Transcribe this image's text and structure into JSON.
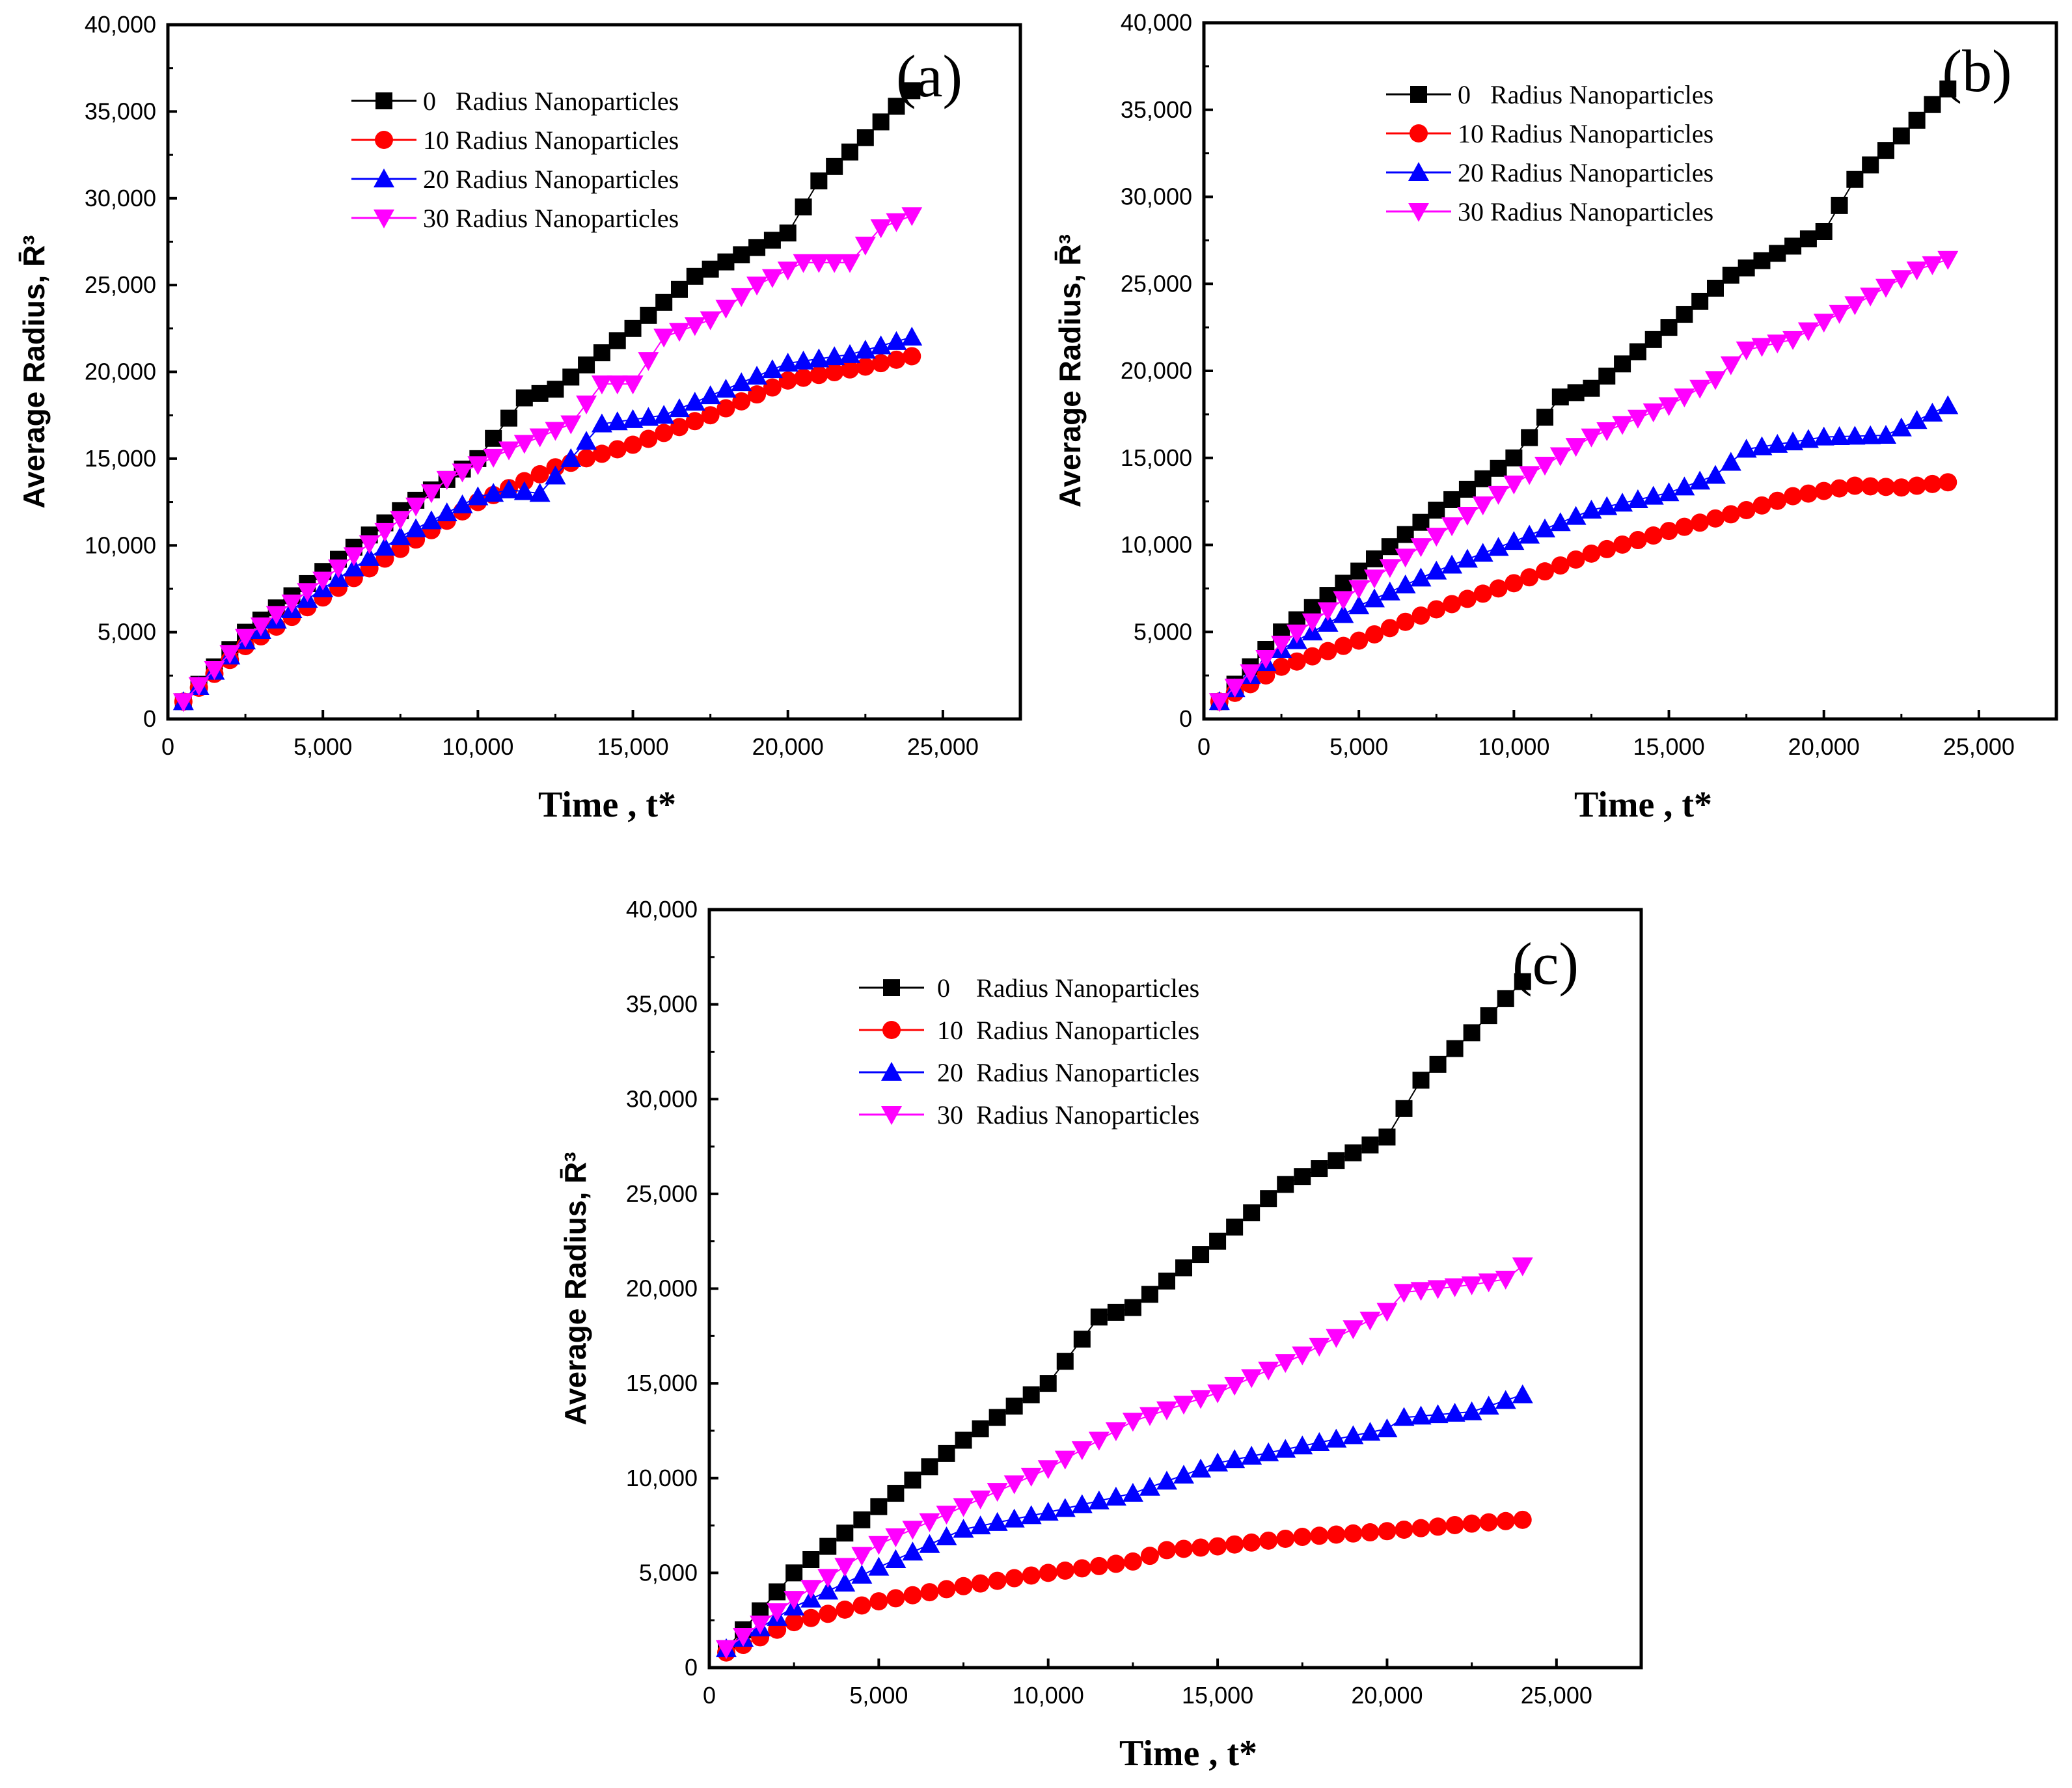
{
  "chart_data": [
    {
      "type": "line",
      "panel_label": "(a)",
      "xlabel": "Time , t*",
      "ylabel": "Average Radius, R̄³",
      "xlim": [
        0,
        27500
      ],
      "ylim": [
        0,
        40000
      ],
      "xticks": [
        "0",
        "5,000",
        "10,000",
        "15,000",
        "20,000",
        "25,000"
      ],
      "yticks": [
        "0",
        "5,000",
        "10,000",
        "15,000",
        "20,000",
        "25,000",
        "30,000",
        "35,000",
        "40,000"
      ],
      "legend_position": "top-center",
      "series": [
        {
          "name": "0   Radius Nanoparticles",
          "color": "#000000",
          "marker": "square",
          "x": [
            500,
            2500,
            5000,
            7500,
            10000,
            11500,
            12500,
            15000,
            17000,
            20000,
            21000,
            22500,
            24000
          ],
          "y": [
            1000,
            5000,
            8500,
            12000,
            15000,
            18500,
            19000,
            22500,
            25500,
            28000,
            31000,
            33500,
            36200
          ]
        },
        {
          "name": "10 Radius Nanoparticles",
          "color": "#ff0000",
          "marker": "circle",
          "x": [
            500,
            2500,
            5000,
            7500,
            10000,
            12500,
            15000,
            17500,
            20000,
            22500,
            24000
          ],
          "y": [
            1000,
            4200,
            7000,
            9800,
            12500,
            14500,
            15800,
            17500,
            19500,
            20300,
            20900
          ]
        },
        {
          "name": "20 Radius Nanoparticles",
          "color": "#0000ff",
          "marker": "triangle-up",
          "x": [
            500,
            2500,
            5000,
            7500,
            10000,
            11000,
            12000,
            14000,
            16000,
            18000,
            20000,
            22000,
            24000
          ],
          "y": [
            1000,
            4500,
            7500,
            10500,
            12800,
            13200,
            13000,
            17000,
            17500,
            19000,
            20500,
            21000,
            22000
          ]
        },
        {
          "name": "30 Radius Nanoparticles",
          "color": "#ff00ff",
          "marker": "triangle-down",
          "x": [
            500,
            2500,
            5000,
            7500,
            9000,
            11000,
            13000,
            14000,
            15000,
            16000,
            17500,
            19000,
            20500,
            22000,
            23000,
            24000
          ],
          "y": [
            1000,
            4700,
            8000,
            11500,
            13800,
            15500,
            17000,
            19300,
            19300,
            22000,
            23000,
            25000,
            26300,
            26300,
            28300,
            29000
          ]
        }
      ]
    },
    {
      "type": "line",
      "panel_label": "(b)",
      "xlabel": "Time , t*",
      "ylabel": "Average Radius, R̄³",
      "xlim": [
        0,
        27500
      ],
      "ylim": [
        0,
        40000
      ],
      "xticks": [
        "0",
        "5,000",
        "10,000",
        "15,000",
        "20,000",
        "25,000"
      ],
      "yticks": [
        "0",
        "5,000",
        "10,000",
        "15,000",
        "20,000",
        "25,000",
        "30,000",
        "35,000",
        "40,000"
      ],
      "legend_position": "top-center",
      "series": [
        {
          "name": "0   Radius Nanoparticles",
          "color": "#000000",
          "marker": "square",
          "x": [
            500,
            2500,
            5000,
            7500,
            10000,
            11500,
            12500,
            15000,
            17000,
            20000,
            21000,
            22500,
            24000
          ],
          "y": [
            1000,
            5000,
            8500,
            12000,
            15000,
            18500,
            19000,
            22500,
            25500,
            28000,
            31000,
            33500,
            36200
          ]
        },
        {
          "name": "10 Radius Nanoparticles",
          "color": "#ff0000",
          "marker": "circle",
          "x": [
            500,
            2500,
            5000,
            7500,
            10000,
            12500,
            15000,
            17500,
            19000,
            21000,
            22500,
            24000
          ],
          "y": [
            1000,
            3000,
            4500,
            6300,
            7800,
            9500,
            10800,
            12000,
            12800,
            13400,
            13300,
            13600
          ]
        },
        {
          "name": "20 Radius Nanoparticles",
          "color": "#0000ff",
          "marker": "triangle-up",
          "x": [
            500,
            2500,
            5000,
            7500,
            10000,
            12500,
            15000,
            16500,
            17500,
            20000,
            22000,
            24000
          ],
          "y": [
            1000,
            4000,
            6500,
            8500,
            10200,
            12000,
            13000,
            14000,
            15500,
            16200,
            16300,
            18000
          ]
        },
        {
          "name": "30 Radius Nanoparticles",
          "color": "#ff00ff",
          "marker": "triangle-down",
          "x": [
            500,
            2500,
            5000,
            7500,
            10000,
            12500,
            15000,
            16500,
            17500,
            19000,
            21000,
            23000,
            24000
          ],
          "y": [
            1000,
            4300,
            7500,
            10500,
            13500,
            16200,
            18000,
            19500,
            21200,
            21800,
            23800,
            25800,
            26400
          ]
        }
      ]
    },
    {
      "type": "line",
      "panel_label": "(c)",
      "xlabel": "Time , t*",
      "ylabel": "Average Radius, R̄³",
      "xlim": [
        0,
        27500
      ],
      "ylim": [
        0,
        40000
      ],
      "xticks": [
        "0",
        "5,000",
        "10,000",
        "15,000",
        "20,000",
        "25,000"
      ],
      "yticks": [
        "0",
        "5,000",
        "10,000",
        "15,000",
        "20,000",
        "25,000",
        "30,000",
        "35,000",
        "40,000"
      ],
      "legend_position": "top-center",
      "series": [
        {
          "name": "0    Radius Nanoparticles",
          "color": "#000000",
          "marker": "square",
          "x": [
            500,
            2500,
            5000,
            7500,
            10000,
            11500,
            12500,
            15000,
            17000,
            20000,
            21000,
            22500,
            24000
          ],
          "y": [
            1000,
            5000,
            8500,
            12000,
            15000,
            18500,
            19000,
            22500,
            25500,
            28000,
            31000,
            33500,
            36200
          ]
        },
        {
          "name": "10  Radius Nanoparticles",
          "color": "#ff0000",
          "marker": "circle",
          "x": [
            500,
            2500,
            5000,
            7500,
            10000,
            12500,
            13500,
            15000,
            17500,
            20000,
            22500,
            24000
          ],
          "y": [
            800,
            2400,
            3500,
            4300,
            5000,
            5600,
            6200,
            6400,
            6900,
            7200,
            7600,
            7800
          ]
        },
        {
          "name": "20  Radius Nanoparticles",
          "color": "#0000ff",
          "marker": "triangle-up",
          "x": [
            500,
            2500,
            5000,
            7500,
            10000,
            12500,
            15000,
            17500,
            20000,
            20500,
            22500,
            24000
          ],
          "y": [
            1000,
            3200,
            5300,
            7300,
            8200,
            9200,
            10800,
            11700,
            12600,
            13200,
            13500,
            14400
          ]
        },
        {
          "name": "30  Radius Nanoparticles",
          "color": "#ff00ff",
          "marker": "triangle-down",
          "x": [
            500,
            2500,
            5000,
            7500,
            10000,
            12500,
            15000,
            17500,
            20000,
            20500,
            22500,
            23500,
            24000
          ],
          "y": [
            1000,
            3600,
            6500,
            8500,
            10500,
            13000,
            14500,
            16500,
            18800,
            19800,
            20200,
            20500,
            21200
          ]
        }
      ]
    }
  ]
}
